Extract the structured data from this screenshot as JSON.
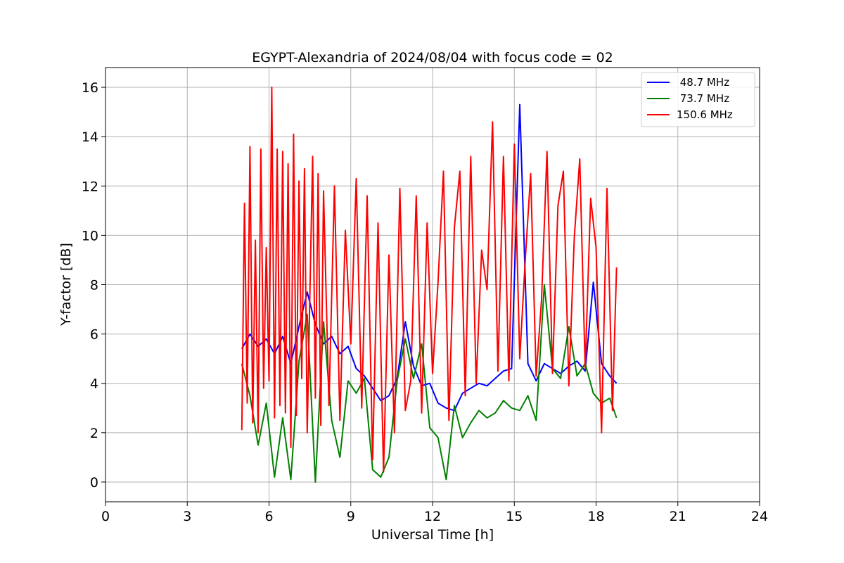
{
  "chart_data": {
    "type": "line",
    "title": "EGYPT-Alexandria of 2024/08/04 with focus code = 02",
    "xlabel": "Universal Time [h]",
    "ylabel": "Y-factor [dB]",
    "xlim": [
      0,
      24
    ],
    "ylim": [
      -0.8,
      16.8
    ],
    "xticks": [
      0,
      3,
      6,
      9,
      12,
      15,
      18,
      21,
      24
    ],
    "yticks": [
      0,
      2,
      4,
      6,
      8,
      10,
      12,
      14,
      16
    ],
    "xtick_labels": [
      "0",
      "3",
      "6",
      "9",
      "12",
      "15",
      "18",
      "21",
      "24"
    ],
    "ytick_labels": [
      "0",
      "2",
      "4",
      "6",
      "8",
      "10",
      "12",
      "14",
      "16"
    ],
    "grid": true,
    "legend_position": "top-right",
    "series": [
      {
        "name": " 48.7 MHz",
        "color": "#0000ff",
        "x": [
          5.0,
          5.3,
          5.6,
          5.9,
          6.2,
          6.5,
          6.8,
          7.1,
          7.4,
          7.7,
          8.0,
          8.3,
          8.6,
          8.9,
          9.2,
          9.5,
          9.8,
          10.1,
          10.4,
          10.7,
          11.0,
          11.3,
          11.6,
          11.9,
          12.2,
          12.5,
          12.8,
          13.1,
          13.4,
          13.7,
          14.0,
          14.3,
          14.6,
          14.9,
          15.2,
          15.5,
          15.8,
          16.1,
          16.4,
          16.7,
          17.0,
          17.3,
          17.6,
          17.9,
          18.2,
          18.5,
          18.75
        ],
        "values": [
          5.4,
          6.0,
          5.5,
          5.8,
          5.2,
          5.9,
          4.8,
          6.3,
          7.7,
          6.4,
          5.6,
          5.9,
          5.2,
          5.5,
          4.6,
          4.3,
          3.8,
          3.3,
          3.5,
          4.2,
          6.5,
          4.7,
          3.9,
          4.0,
          3.2,
          3.0,
          2.9,
          3.6,
          3.8,
          4.0,
          3.9,
          4.2,
          4.5,
          4.6,
          15.3,
          4.8,
          4.1,
          4.8,
          4.6,
          4.4,
          4.7,
          4.9,
          4.5,
          8.1,
          4.8,
          4.3,
          4.0
        ]
      },
      {
        "name": " 73.7 MHz",
        "color": "#008000",
        "x": [
          5.0,
          5.3,
          5.6,
          5.9,
          6.2,
          6.5,
          6.8,
          7.1,
          7.4,
          7.7,
          8.0,
          8.3,
          8.6,
          8.9,
          9.2,
          9.5,
          9.8,
          10.1,
          10.4,
          10.7,
          11.0,
          11.3,
          11.6,
          11.9,
          12.2,
          12.5,
          12.8,
          13.1,
          13.4,
          13.7,
          14.0,
          14.3,
          14.6,
          14.9,
          15.2,
          15.5,
          15.8,
          16.1,
          16.4,
          16.7,
          17.0,
          17.3,
          17.6,
          17.9,
          18.2,
          18.5,
          18.75
        ],
        "values": [
          4.8,
          3.5,
          1.5,
          3.2,
          0.2,
          2.6,
          0.1,
          4.9,
          6.8,
          0.0,
          6.5,
          2.5,
          1.0,
          4.1,
          3.6,
          4.2,
          0.5,
          0.2,
          1.0,
          4.1,
          5.8,
          4.2,
          5.6,
          2.2,
          1.8,
          0.1,
          3.1,
          1.8,
          2.4,
          2.9,
          2.6,
          2.8,
          3.3,
          3.0,
          2.9,
          3.5,
          2.5,
          8.0,
          4.6,
          4.2,
          6.3,
          4.3,
          4.8,
          3.6,
          3.2,
          3.4,
          2.6
        ]
      },
      {
        "name": "150.6 MHz",
        "color": "#ff0000",
        "x": [
          5.0,
          5.1,
          5.2,
          5.3,
          5.4,
          5.5,
          5.6,
          5.7,
          5.8,
          5.9,
          6.0,
          6.1,
          6.2,
          6.3,
          6.4,
          6.5,
          6.6,
          6.7,
          6.8,
          6.9,
          7.0,
          7.1,
          7.2,
          7.3,
          7.4,
          7.5,
          7.6,
          7.7,
          7.8,
          7.9,
          8.0,
          8.2,
          8.4,
          8.6,
          8.8,
          9.0,
          9.2,
          9.4,
          9.6,
          9.8,
          10.0,
          10.2,
          10.4,
          10.6,
          10.8,
          11.0,
          11.2,
          11.4,
          11.6,
          11.8,
          12.0,
          12.2,
          12.4,
          12.6,
          12.8,
          13.0,
          13.2,
          13.4,
          13.6,
          13.8,
          14.0,
          14.2,
          14.4,
          14.6,
          14.8,
          15.0,
          15.2,
          15.4,
          15.6,
          15.8,
          16.0,
          16.2,
          16.4,
          16.6,
          16.8,
          17.0,
          17.2,
          17.4,
          17.6,
          17.8,
          18.0,
          18.2,
          18.4,
          18.6,
          18.75
        ],
        "values": [
          2.1,
          11.3,
          3.2,
          13.6,
          2.4,
          9.8,
          2.0,
          13.5,
          3.8,
          9.5,
          4.1,
          16.0,
          2.6,
          13.5,
          3.1,
          13.4,
          2.8,
          12.9,
          1.4,
          14.1,
          2.7,
          12.2,
          4.2,
          12.7,
          2.0,
          7.6,
          13.2,
          3.4,
          12.5,
          2.3,
          11.8,
          3.1,
          12.0,
          2.5,
          10.2,
          5.6,
          12.3,
          3.0,
          11.6,
          0.9,
          10.5,
          0.4,
          9.2,
          2.0,
          11.9,
          2.9,
          4.1,
          11.6,
          2.8,
          10.5,
          4.4,
          8.1,
          12.6,
          2.5,
          10.3,
          12.6,
          3.5,
          13.2,
          4.0,
          9.4,
          7.8,
          14.6,
          4.5,
          13.2,
          4.1,
          13.7,
          5.0,
          9.0,
          12.5,
          4.3,
          7.4,
          13.4,
          4.4,
          11.2,
          12.6,
          3.9,
          9.9,
          13.1,
          4.6,
          11.5,
          9.5,
          2.0,
          11.9,
          2.9,
          8.7
        ]
      }
    ]
  }
}
